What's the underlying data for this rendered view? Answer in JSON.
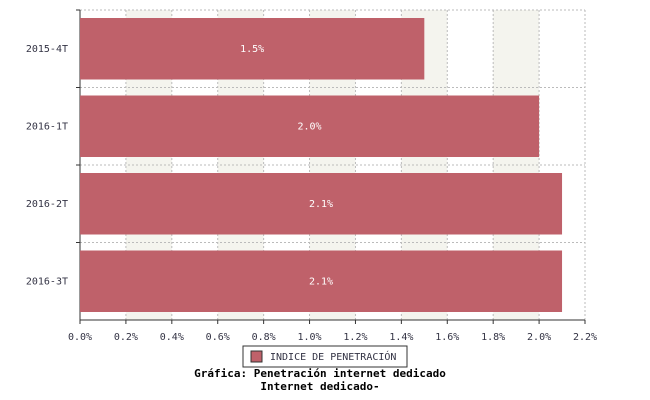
{
  "chart_data": {
    "type": "barh",
    "categories": [
      "2015-4T",
      "2016-1T",
      "2016-2T",
      "2016-3T"
    ],
    "series": [
      {
        "name": "INDICE DE PENETRACIÓN",
        "color": "#bf616a",
        "values": [
          1.5,
          2.0,
          2.1,
          2.1
        ],
        "value_labels": [
          "1.5%",
          "2.0%",
          "2.1%",
          "2.1%"
        ]
      }
    ],
    "xlim": [
      0,
      2.2
    ],
    "xticks": [
      {
        "value": 0,
        "label": "0.0%"
      },
      {
        "value": 0.2,
        "label": "0.2%"
      },
      {
        "value": 0.4,
        "label": "0.4%"
      },
      {
        "value": 0.6,
        "label": "0.6%"
      },
      {
        "value": 0.8,
        "label": "0.8%"
      },
      {
        "value": 1.0,
        "label": "1.0%"
      },
      {
        "value": 1.2,
        "label": "1.2%"
      },
      {
        "value": 1.4,
        "label": "1.4%"
      },
      {
        "value": 1.6,
        "label": "1.6%"
      },
      {
        "value": 1.8,
        "label": "1.8%"
      },
      {
        "value": 2.0,
        "label": "2.0%"
      },
      {
        "value": 2.2,
        "label": "2.2%"
      }
    ],
    "grid": true,
    "caption": [
      "Gráfica: Penetración internet dedicado",
      "Internet dedicado-"
    ]
  }
}
